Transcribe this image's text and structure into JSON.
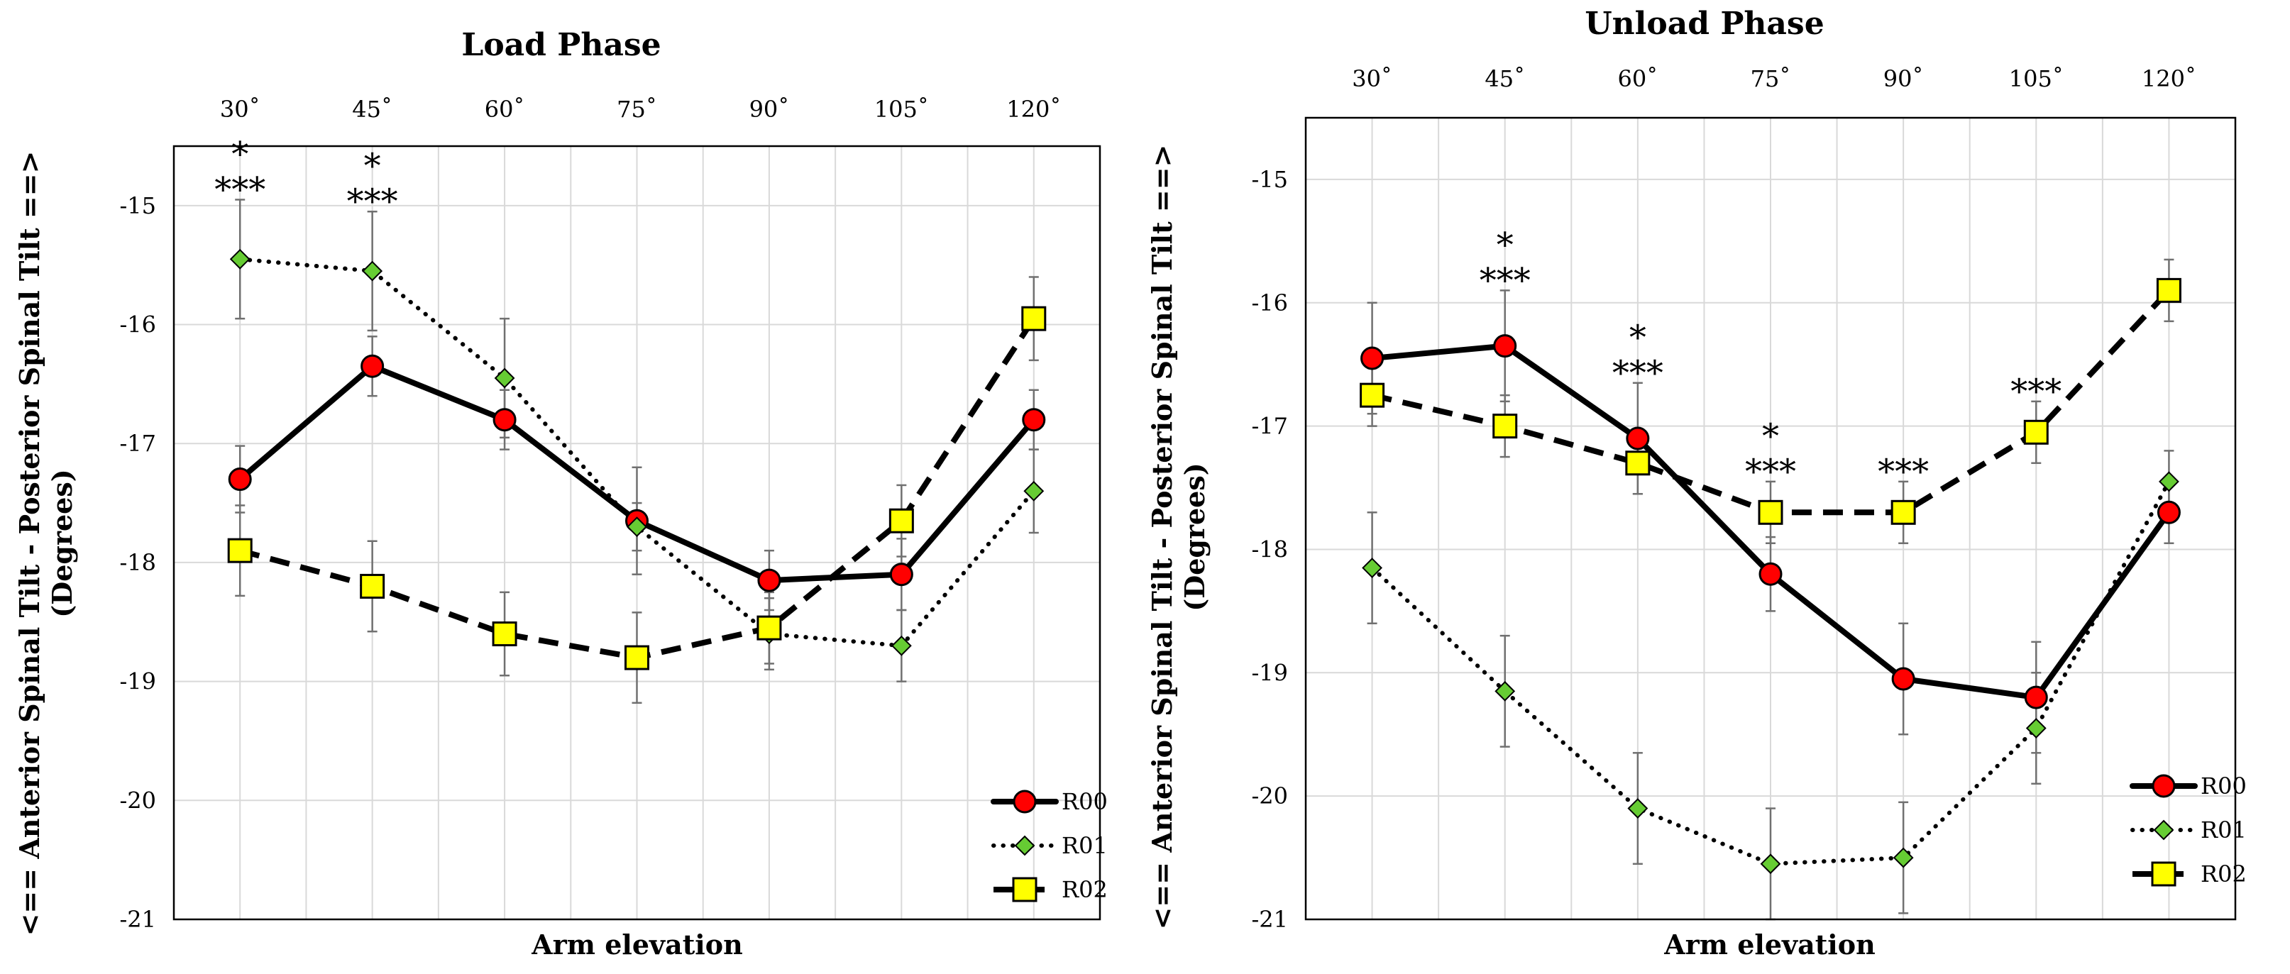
{
  "chart_data": [
    {
      "type": "line",
      "title": "Load Phase",
      "xlabel": "Arm elevation",
      "ylabel_line1": "<== Anterior Spinal Tilt - Posterior Spinal Tilt ==>",
      "ylabel_line2": "(Degrees)",
      "categories": [
        "30˚",
        "45˚",
        "60˚",
        "75˚",
        "90˚",
        "105˚",
        "120˚"
      ],
      "ylim": [
        -21,
        -14.5
      ],
      "yticks": [
        "-15",
        "-16",
        "-17",
        "-18",
        "-19",
        "-20",
        "-21"
      ],
      "grid": true,
      "legend": "bottom-right",
      "series": [
        {
          "name": "R00",
          "style": "solid",
          "marker": "circle",
          "color": "#ff0000",
          "values": [
            -17.3,
            -16.35,
            -16.8,
            -17.65,
            -18.15,
            -18.1,
            -16.8
          ],
          "errors": [
            0.28,
            0.25,
            0.25,
            0.45,
            0.25,
            0.3,
            0.25
          ]
        },
        {
          "name": "R01",
          "style": "dotted",
          "marker": "diamond",
          "color": "#66cc33",
          "values": [
            -15.45,
            -15.55,
            -16.45,
            -17.7,
            -18.6,
            -18.7,
            -17.4
          ],
          "errors": [
            0.5,
            0.5,
            0.5,
            0.2,
            0.3,
            0.3,
            0.35
          ]
        },
        {
          "name": "R02",
          "style": "dashed",
          "marker": "square",
          "color": "#ffff00",
          "values": [
            -17.9,
            -18.2,
            -18.6,
            -18.8,
            -18.55,
            -17.65,
            -15.95
          ],
          "errors": [
            0.38,
            0.38,
            0.35,
            0.38,
            0.3,
            0.3,
            0.35
          ]
        }
      ],
      "annotations": [
        {
          "category": "30˚",
          "lines": [
            "*",
            "***"
          ]
        },
        {
          "category": "45˚",
          "lines": [
            "*",
            "***"
          ]
        }
      ]
    },
    {
      "type": "line",
      "title": "Unload Phase",
      "xlabel": "Arm elevation",
      "ylabel_line1": "<== Anterior Spinal Tilt - Posterior Spinal Tilt ==>",
      "ylabel_line2": "(Degrees)",
      "categories": [
        "30˚",
        "45˚",
        "60˚",
        "75˚",
        "90˚",
        "105˚",
        "120˚"
      ],
      "ylim": [
        -21,
        -14.5
      ],
      "yticks": [
        "-15",
        "-16",
        "-17",
        "-18",
        "-19",
        "-20",
        "-21"
      ],
      "grid": true,
      "legend": "bottom-right",
      "series": [
        {
          "name": "R00",
          "style": "solid",
          "marker": "circle",
          "color": "#ff0000",
          "values": [
            -16.45,
            -16.35,
            -17.1,
            -18.2,
            -19.05,
            -19.2,
            -17.7
          ],
          "errors": [
            0.45,
            0.45,
            0.45,
            0.3,
            0.45,
            0.45,
            0.25
          ]
        },
        {
          "name": "R01",
          "style": "dotted",
          "marker": "diamond",
          "color": "#66cc33",
          "values": [
            -18.15,
            -19.15,
            -20.1,
            -20.55,
            -20.5,
            -19.45,
            -17.45
          ],
          "errors": [
            0.45,
            0.45,
            0.45,
            0.45,
            0.45,
            0.45,
            0.25
          ]
        },
        {
          "name": "R02",
          "style": "dashed",
          "marker": "square",
          "color": "#ffff00",
          "values": [
            -16.75,
            -17.0,
            -17.3,
            -17.7,
            -17.7,
            -17.05,
            -15.9
          ],
          "errors": [
            0.25,
            0.25,
            0.25,
            0.25,
            0.25,
            0.25,
            0.25
          ]
        }
      ],
      "annotations": [
        {
          "category": "45˚",
          "lines": [
            "*",
            "***"
          ]
        },
        {
          "category": "60˚",
          "lines": [
            "*",
            "***"
          ]
        },
        {
          "category": "75˚",
          "lines": [
            "*",
            "***"
          ]
        },
        {
          "category": "90˚",
          "lines": [
            "***"
          ]
        },
        {
          "category": "105˚",
          "lines": [
            "***"
          ]
        }
      ]
    }
  ]
}
